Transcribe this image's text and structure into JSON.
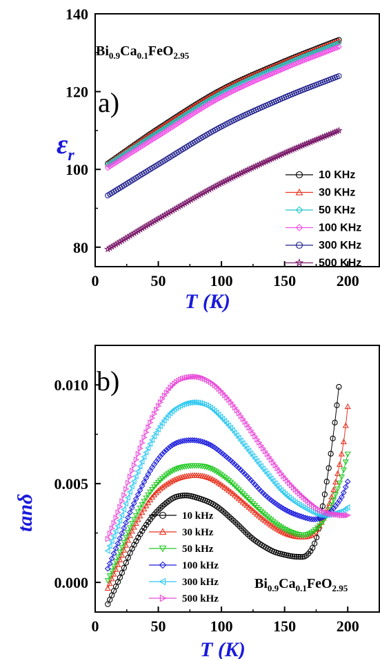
{
  "chart_data": [
    {
      "type": "scatter",
      "panel_label": "a)",
      "formula": {
        "el1": "Bi",
        "s1": "0.9",
        "el2": "Ca",
        "s2": "0.1",
        "el3": "FeO",
        "s3": "2.95"
      },
      "xlabel": "T (K)",
      "ylabel": "ε r",
      "ylabel_main": "ε",
      "ylabel_sub": "r",
      "xlim": [
        0,
        225
      ],
      "ylim": [
        75,
        140
      ],
      "xticks": [
        0,
        50,
        100,
        150,
        200
      ],
      "yticks": [
        80,
        100,
        120,
        140
      ],
      "x": [
        10,
        50,
        100,
        150,
        193
      ],
      "series": [
        {
          "name": "10 KHz",
          "color": "#000000",
          "marker": "circle",
          "values": [
            101.5,
            110.5,
            120.5,
            127.8,
            133.3
          ]
        },
        {
          "name": "30 KHz",
          "color": "#e8321f",
          "marker": "triangle-up",
          "values": [
            101.4,
            110.3,
            120.3,
            127.6,
            133.0
          ]
        },
        {
          "name": "50 KHz",
          "color": "#22c8c8",
          "marker": "diamond",
          "values": [
            101.2,
            109.6,
            119.6,
            127.0,
            132.5
          ]
        },
        {
          "name": "100 KHz",
          "color": "#f050e6",
          "marker": "diamond",
          "values": [
            100.4,
            108.6,
            118.6,
            126.0,
            131.5
          ]
        },
        {
          "name": "300 KHz",
          "color": "#1c1c8a",
          "marker": "circle",
          "values": [
            93.3,
            101.3,
            111.0,
            118.5,
            124.0
          ]
        },
        {
          "name": "500 KHz",
          "color": "#7a1a6a",
          "marker": "star",
          "values": [
            79.5,
            87.3,
            96.5,
            104.2,
            110.0
          ]
        }
      ],
      "legend_position": "bottom-right"
    },
    {
      "type": "scatter",
      "panel_label": "b)",
      "formula": {
        "el1": "Bi",
        "s1": "0.9",
        "el2": "Ca",
        "s2": "0.1",
        "el3": "FeO",
        "s3": "2.95"
      },
      "xlabel": "T (K)",
      "ylabel": "tanδ",
      "xlim": [
        0,
        225
      ],
      "ylim": [
        -0.0015,
        0.012
      ],
      "xticks": [
        0,
        50,
        100,
        150,
        200
      ],
      "yticks": [
        0.0,
        0.005,
        0.01
      ],
      "ytick_labels": [
        "0.000",
        "0.005",
        "0.010"
      ],
      "series": [
        {
          "name": "10 kHz",
          "color": "#000000",
          "marker": "circle",
          "x": [
            10,
            20,
            30,
            45,
            60,
            70,
            80,
            95,
            110,
            125,
            140,
            150,
            160,
            168,
            175,
            180,
            185,
            190,
            193
          ],
          "values": [
            -0.0011,
            0.0003,
            0.0018,
            0.0033,
            0.0042,
            0.0044,
            0.0043,
            0.0039,
            0.0031,
            0.0022,
            0.0016,
            0.0014,
            0.0013,
            0.0014,
            0.0022,
            0.0038,
            0.0058,
            0.0082,
            0.0099
          ]
        },
        {
          "name": "30 kHz",
          "color": "#e8321f",
          "marker": "triangle-up",
          "x": [
            10,
            20,
            30,
            45,
            60,
            75,
            90,
            105,
            120,
            135,
            150,
            165,
            175,
            185,
            192,
            197,
            200
          ],
          "values": [
            -0.0003,
            0.0012,
            0.0027,
            0.0043,
            0.0051,
            0.0054,
            0.0053,
            0.0047,
            0.0039,
            0.0031,
            0.0025,
            0.0023,
            0.0026,
            0.0039,
            0.0055,
            0.0072,
            0.0089
          ]
        },
        {
          "name": "50 kHz",
          "color": "#22c822",
          "marker": "triangle-down",
          "x": [
            10,
            20,
            30,
            45,
            60,
            75,
            90,
            105,
            120,
            135,
            150,
            165,
            175,
            185,
            195,
            200
          ],
          "values": [
            0.0001,
            0.0016,
            0.0031,
            0.0047,
            0.0056,
            0.0059,
            0.0058,
            0.0052,
            0.0043,
            0.0034,
            0.0027,
            0.0024,
            0.0027,
            0.0036,
            0.0053,
            0.0065
          ]
        },
        {
          "name": "100 kHz",
          "color": "#1c1cdc",
          "marker": "diamond",
          "x": [
            10,
            20,
            30,
            45,
            60,
            75,
            90,
            105,
            120,
            135,
            150,
            165,
            175,
            185,
            195,
            200
          ],
          "values": [
            0.0007,
            0.0023,
            0.0039,
            0.0058,
            0.0069,
            0.0072,
            0.007,
            0.0063,
            0.0054,
            0.0044,
            0.0037,
            0.0033,
            0.0032,
            0.0035,
            0.0043,
            0.0051
          ]
        },
        {
          "name": "300 kHz",
          "color": "#2ec8f0",
          "marker": "triangle-left",
          "x": [
            10,
            20,
            30,
            45,
            60,
            75,
            90,
            105,
            120,
            135,
            150,
            165,
            180,
            195,
            200
          ],
          "values": [
            0.0016,
            0.0032,
            0.005,
            0.0072,
            0.0086,
            0.0091,
            0.0089,
            0.008,
            0.0068,
            0.0056,
            0.0045,
            0.0038,
            0.0034,
            0.0036,
            0.0038
          ]
        },
        {
          "name": "500 kHz",
          "color": "#e84ad8",
          "marker": "triangle-right",
          "x": [
            10,
            20,
            30,
            45,
            60,
            75,
            90,
            105,
            120,
            135,
            150,
            165,
            180,
            195,
            200
          ],
          "values": [
            0.0022,
            0.0039,
            0.0058,
            0.0083,
            0.0099,
            0.0104,
            0.0102,
            0.0093,
            0.008,
            0.0066,
            0.0053,
            0.0043,
            0.0036,
            0.0034,
            0.0034
          ]
        }
      ],
      "legend_position": "bottom-left"
    }
  ]
}
